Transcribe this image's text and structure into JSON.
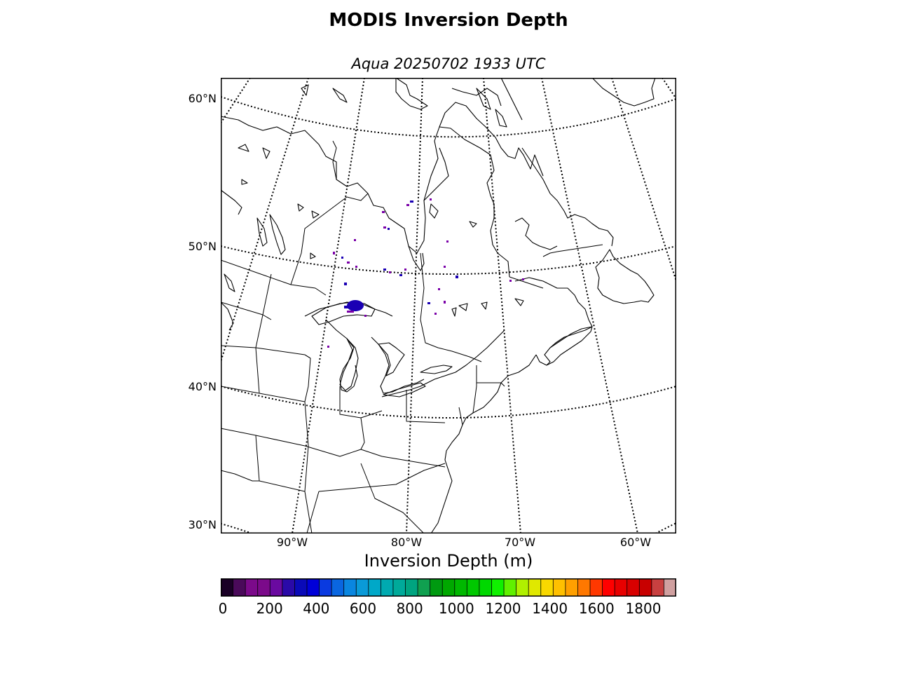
{
  "title": "MODIS Inversion Depth",
  "subtitle": "Aqua 20250702 1933 UTC",
  "map": {
    "latitude_labels": [
      "60°N",
      "50°N",
      "40°N",
      "30°N"
    ],
    "longitude_labels": [
      "90°W",
      "80°W",
      "70°W",
      "60°W"
    ],
    "graticule_style": "dotted",
    "data_color": "#1a00b4",
    "secondary_data_color": "#7a00a8"
  },
  "colorbar": {
    "label": "Inversion Depth (m)",
    "tick_labels": [
      "0",
      "200",
      "400",
      "600",
      "800",
      "1000",
      "1200",
      "1400",
      "1600",
      "1800"
    ],
    "colors": [
      "#1a0026",
      "#4a0a5a",
      "#7b0a8a",
      "#7b0a8a",
      "#6a0aa0",
      "#2a0aa8",
      "#0a0ab8",
      "#0000d8",
      "#0a3ae0",
      "#0a66e0",
      "#0a86e0",
      "#0a9ad8",
      "#00a8c8",
      "#00aab0",
      "#00aa9a",
      "#00a480",
      "#10a050",
      "#009a10",
      "#00a800",
      "#00b800",
      "#00c800",
      "#00d800",
      "#10f000",
      "#60f000",
      "#b0f000",
      "#e0e800",
      "#f8d800",
      "#ffc000",
      "#ffa000",
      "#ff7800",
      "#ff3800",
      "#ff0000",
      "#e80000",
      "#d80000",
      "#c80000",
      "#c84040",
      "#d0a0a0"
    ]
  }
}
